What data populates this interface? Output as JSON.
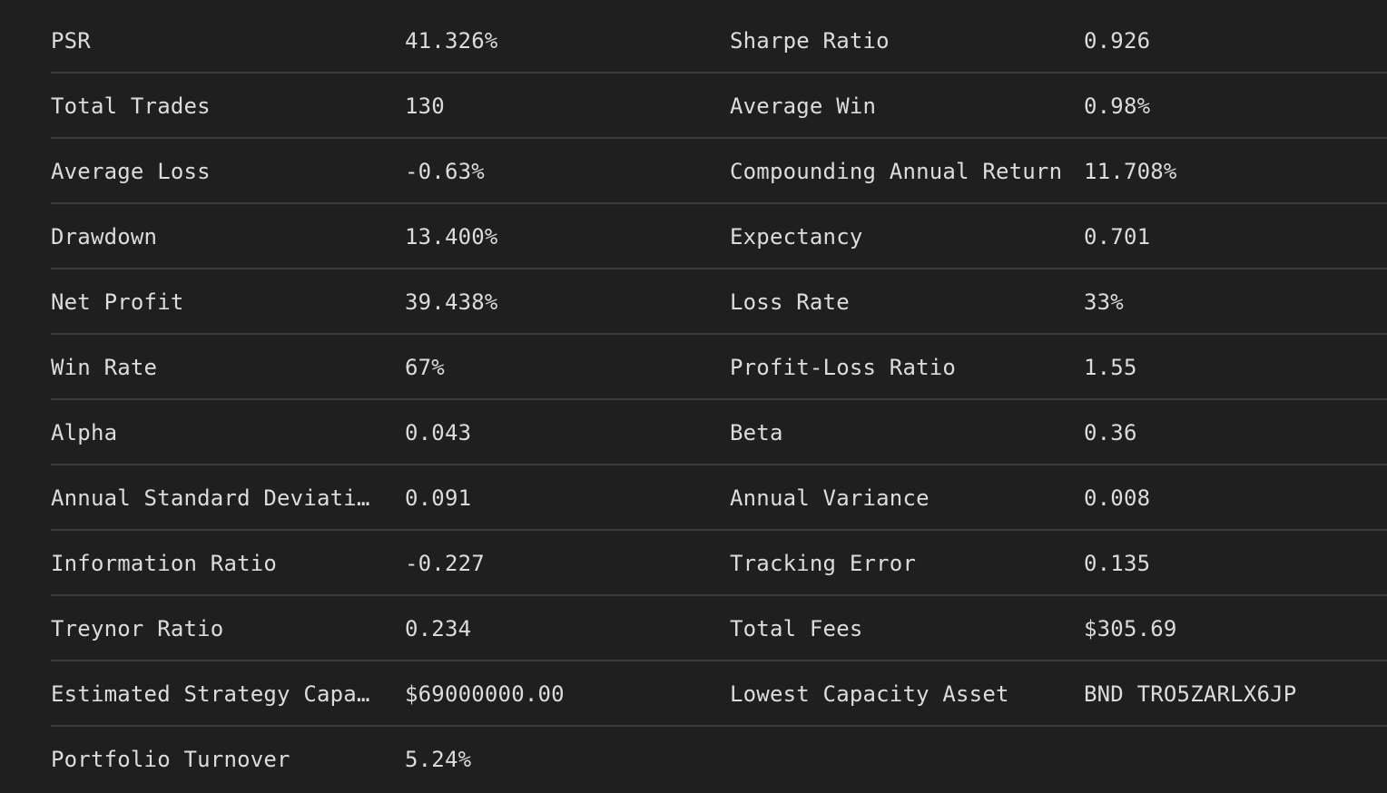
{
  "statistics": {
    "rows": [
      {
        "label_left": "PSR",
        "value_left": "41.326%",
        "label_right": "Sharpe Ratio",
        "value_right": "0.926"
      },
      {
        "label_left": "Total Trades",
        "value_left": "130",
        "label_right": "Average Win",
        "value_right": "0.98%"
      },
      {
        "label_left": "Average Loss",
        "value_left": "-0.63%",
        "label_right": "Compounding Annual Return",
        "value_right": "11.708%"
      },
      {
        "label_left": "Drawdown",
        "value_left": "13.400%",
        "label_right": "Expectancy",
        "value_right": "0.701"
      },
      {
        "label_left": "Net Profit",
        "value_left": "39.438%",
        "label_right": "Loss Rate",
        "value_right": "33%"
      },
      {
        "label_left": "Win Rate",
        "value_left": "67%",
        "label_right": "Profit-Loss Ratio",
        "value_right": "1.55"
      },
      {
        "label_left": "Alpha",
        "value_left": "0.043",
        "label_right": "Beta",
        "value_right": "0.36"
      },
      {
        "label_left": "Annual Standard Deviation",
        "value_left": "0.091",
        "label_right": "Annual Variance",
        "value_right": "0.008"
      },
      {
        "label_left": "Information Ratio",
        "value_left": "-0.227",
        "label_right": "Tracking Error",
        "value_right": "0.135"
      },
      {
        "label_left": "Treynor Ratio",
        "value_left": "0.234",
        "label_right": "Total Fees",
        "value_right": "$305.69"
      },
      {
        "label_left": "Estimated Strategy Capacity",
        "value_left": "$69000000.00",
        "label_right": "Lowest Capacity Asset",
        "value_right": "BND TRO5ZARLX6JP"
      },
      {
        "label_left": "Portfolio Turnover",
        "value_left": "5.24%",
        "label_right": "",
        "value_right": ""
      }
    ]
  }
}
